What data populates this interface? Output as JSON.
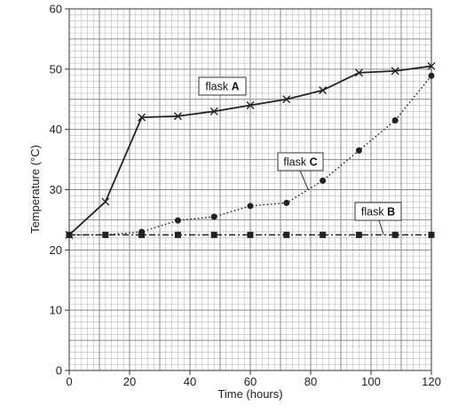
{
  "chart_data": {
    "type": "line",
    "title": "",
    "xlabel": "Time (hours)",
    "ylabel": "Temperature (°C)",
    "xlim": [
      0,
      120
    ],
    "ylim": [
      0,
      60
    ],
    "xticks": [
      0,
      20,
      40,
      60,
      80,
      100,
      120
    ],
    "yticks": [
      0,
      10,
      20,
      30,
      40,
      50,
      60
    ],
    "grid": true,
    "series": [
      {
        "name": "flask A",
        "label_prefix": "flask",
        "label_letter": "A",
        "line_style": "solid",
        "marker": "cross",
        "color": "#222222",
        "x": [
          0,
          12,
          24,
          36,
          48,
          60,
          72,
          84,
          96,
          108,
          120
        ],
        "y": [
          22.5,
          28.0,
          42.0,
          42.2,
          43.0,
          44.0,
          45.0,
          46.5,
          49.4,
          49.7,
          50.5
        ]
      },
      {
        "name": "flask B",
        "label_prefix": "flask",
        "label_letter": "B",
        "line_style": "dash-dot",
        "marker": "square",
        "color": "#222222",
        "x": [
          0,
          12,
          24,
          36,
          48,
          60,
          72,
          84,
          96,
          108,
          120
        ],
        "y": [
          22.5,
          22.5,
          22.5,
          22.5,
          22.5,
          22.5,
          22.5,
          22.5,
          22.5,
          22.5,
          22.5
        ]
      },
      {
        "name": "flask C",
        "label_prefix": "flask",
        "label_letter": "C",
        "line_style": "dotted",
        "marker": "dot",
        "color": "#222222",
        "x": [
          0,
          12,
          24,
          36,
          48,
          60,
          72,
          84,
          96,
          108,
          120
        ],
        "y": [
          22.5,
          22.5,
          23.0,
          24.9,
          25.5,
          27.3,
          27.8,
          31.5,
          36.5,
          41.5,
          48.9
        ]
      }
    ]
  }
}
